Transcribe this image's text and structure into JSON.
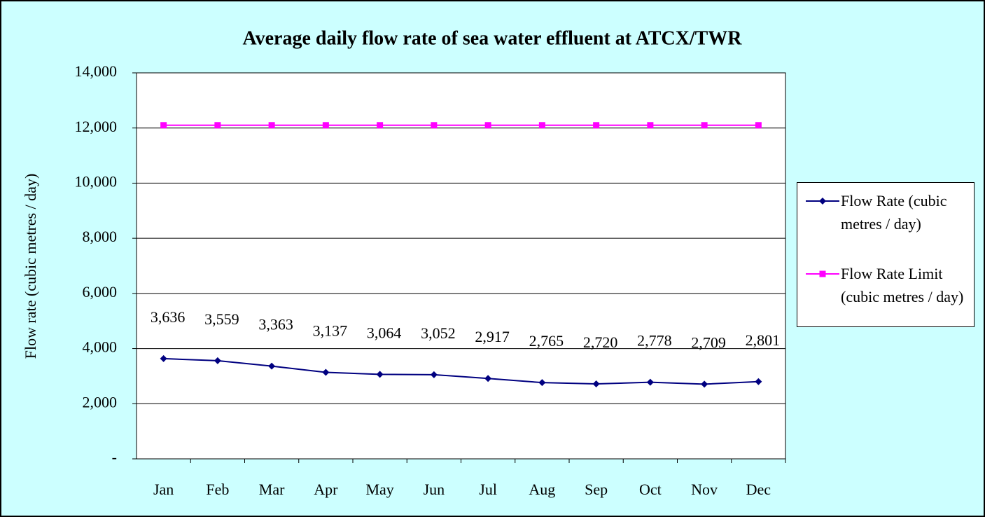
{
  "chart_data": {
    "type": "line",
    "title": "Average daily flow rate of sea water effluent at ATCX/TWR",
    "y_label": "Flow rate (cubic metres / day)",
    "categories": [
      "Jan",
      "Feb",
      "Mar",
      "Apr",
      "May",
      "Jun",
      "Jul",
      "Aug",
      "Sep",
      "Oct",
      "Nov",
      "Dec"
    ],
    "series": [
      {
        "name": "Flow Rate (cubic metres / day)",
        "color": "#000080",
        "marker": "diamond",
        "values": [
          3636,
          3559,
          3363,
          3137,
          3064,
          3052,
          2917,
          2765,
          2720,
          2778,
          2709,
          2801
        ],
        "value_labels": [
          "3,636",
          "3,559",
          "3,363",
          "3,137",
          "3,064",
          "3,052",
          "2,917",
          "2,765",
          "2,720",
          "2,778",
          "2,709",
          "2,801"
        ]
      },
      {
        "name": "Flow Rate Limit (cubic metres / day)",
        "color": "#ff00ff",
        "marker": "square",
        "values": [
          12100,
          12100,
          12100,
          12100,
          12100,
          12100,
          12100,
          12100,
          12100,
          12100,
          12100,
          12100
        ]
      }
    ],
    "ylim": [
      0,
      14000
    ],
    "yticks": [
      {
        "value": 0,
        "label": "-"
      },
      {
        "value": 2000,
        "label": "2,000"
      },
      {
        "value": 4000,
        "label": "4,000"
      },
      {
        "value": 6000,
        "label": "6,000"
      },
      {
        "value": 8000,
        "label": "8,000"
      },
      {
        "value": 10000,
        "label": "10,000"
      },
      {
        "value": 12000,
        "label": "12,000"
      },
      {
        "value": 14000,
        "label": "14,000"
      }
    ],
    "grid": true,
    "legend": "right"
  }
}
